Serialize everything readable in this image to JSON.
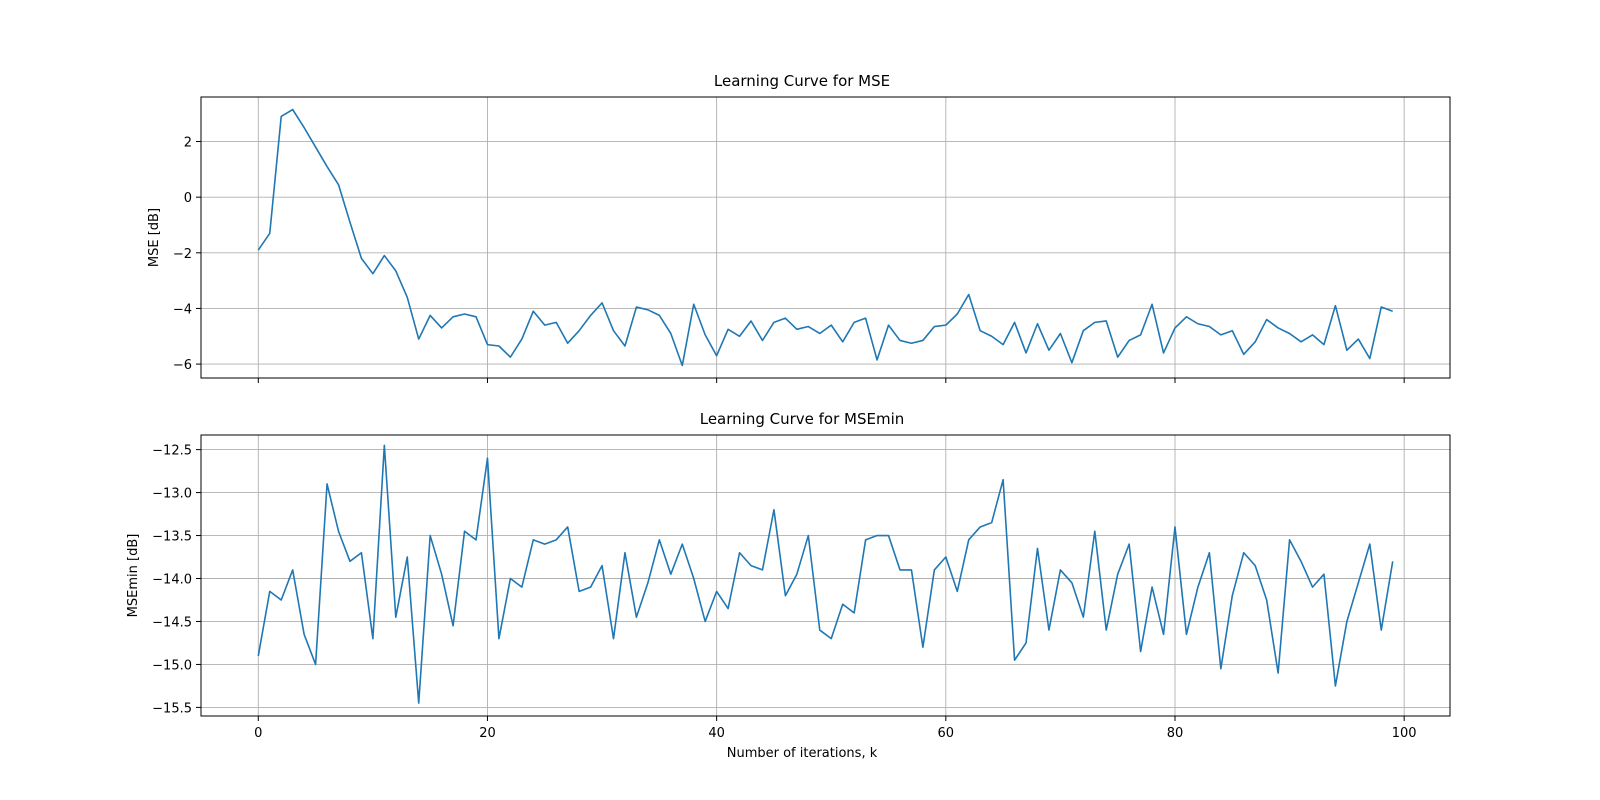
{
  "chart_data": [
    {
      "type": "line",
      "title": "Learning Curve for MSE",
      "ylabel": "MSE [dB]",
      "xlabel": "",
      "xlim": [
        -5,
        104
      ],
      "ylim": [
        -6.5,
        3.6
      ],
      "xticks": [
        0,
        20,
        40,
        60,
        80,
        100
      ],
      "yticks": [
        -6,
        -4,
        -2,
        0,
        2
      ],
      "show_x_tick_labels": false,
      "grid": true,
      "color": "#1f77b4",
      "series": [
        {
          "values": [
            -1.9,
            -1.3,
            2.9,
            3.15,
            2.5,
            1.8,
            1.1,
            0.45,
            -0.9,
            -2.2,
            -2.75,
            -2.1,
            -2.65,
            -3.6,
            -5.1,
            -4.25,
            -4.7,
            -4.3,
            -4.2,
            -4.3,
            -5.3,
            -5.35,
            -5.75,
            -5.1,
            -4.1,
            -4.6,
            -4.5,
            -5.25,
            -4.8,
            -4.25,
            -3.8,
            -4.8,
            -5.35,
            -3.95,
            -4.05,
            -4.25,
            -4.9,
            -6.05,
            -3.85,
            -4.95,
            -5.7,
            -4.75,
            -5.0,
            -4.45,
            -5.15,
            -4.5,
            -4.35,
            -4.75,
            -4.65,
            -4.9,
            -4.6,
            -5.2,
            -4.5,
            -4.35,
            -5.85,
            -4.6,
            -5.15,
            -5.25,
            -5.15,
            -4.65,
            -4.6,
            -4.2,
            -3.5,
            -4.8,
            -5.0,
            -5.3,
            -4.5,
            -5.6,
            -4.55,
            -5.5,
            -4.9,
            -5.95,
            -4.8,
            -4.5,
            -4.45,
            -5.75,
            -5.15,
            -4.95,
            -3.85,
            -5.6,
            -4.7,
            -4.3,
            -4.55,
            -4.65,
            -4.95,
            -4.8,
            -5.65,
            -5.2,
            -4.4,
            -4.7,
            -4.9,
            -5.2,
            -4.95,
            -5.3,
            -3.9,
            -5.5,
            -5.1,
            -5.8,
            -3.95,
            -4.1
          ]
        }
      ]
    },
    {
      "type": "line",
      "title": "Learning Curve for MSEmin",
      "ylabel": "MSEmin [dB]",
      "xlabel": "Number of iterations, k",
      "xlim": [
        -5,
        104
      ],
      "ylim": [
        -15.6,
        -12.33
      ],
      "xticks": [
        0,
        20,
        40,
        60,
        80,
        100
      ],
      "yticks": [
        -15.5,
        -15.0,
        -14.5,
        -14.0,
        -13.5,
        -13.0,
        -12.5
      ],
      "ytick_labels": [
        "−15.5",
        "−15.0",
        "−14.5",
        "−14.0",
        "−13.5",
        "−13.0",
        "−12.5"
      ],
      "show_x_tick_labels": true,
      "grid": true,
      "color": "#1f77b4",
      "series": [
        {
          "values": [
            -14.9,
            -14.15,
            -14.25,
            -13.9,
            -14.65,
            -15.0,
            -12.9,
            -13.45,
            -13.8,
            -13.7,
            -14.7,
            -12.45,
            -14.45,
            -13.75,
            -15.45,
            -13.5,
            -13.95,
            -14.55,
            -13.45,
            -13.55,
            -12.6,
            -14.7,
            -14.0,
            -14.1,
            -13.55,
            -13.6,
            -13.55,
            -13.4,
            -14.15,
            -14.1,
            -13.85,
            -14.7,
            -13.7,
            -14.45,
            -14.05,
            -13.55,
            -13.95,
            -13.6,
            -14.0,
            -14.5,
            -14.15,
            -14.35,
            -13.7,
            -13.85,
            -13.9,
            -13.2,
            -14.2,
            -13.95,
            -13.5,
            -14.6,
            -14.7,
            -14.3,
            -14.4,
            -13.55,
            -13.5,
            -13.5,
            -13.9,
            -13.9,
            -14.8,
            -13.9,
            -13.75,
            -14.15,
            -13.55,
            -13.4,
            -13.35,
            -12.85,
            -14.95,
            -14.75,
            -13.65,
            -14.6,
            -13.9,
            -14.05,
            -14.45,
            -13.45,
            -14.6,
            -13.95,
            -13.6,
            -14.85,
            -14.1,
            -14.65,
            -13.4,
            -14.65,
            -14.1,
            -13.7,
            -15.05,
            -14.2,
            -13.7,
            -13.85,
            -14.25,
            -15.1,
            -13.55,
            -13.8,
            -14.1,
            -13.95,
            -15.25,
            -14.5,
            -14.05,
            -13.6,
            -14.6,
            -13.8
          ]
        }
      ]
    }
  ]
}
